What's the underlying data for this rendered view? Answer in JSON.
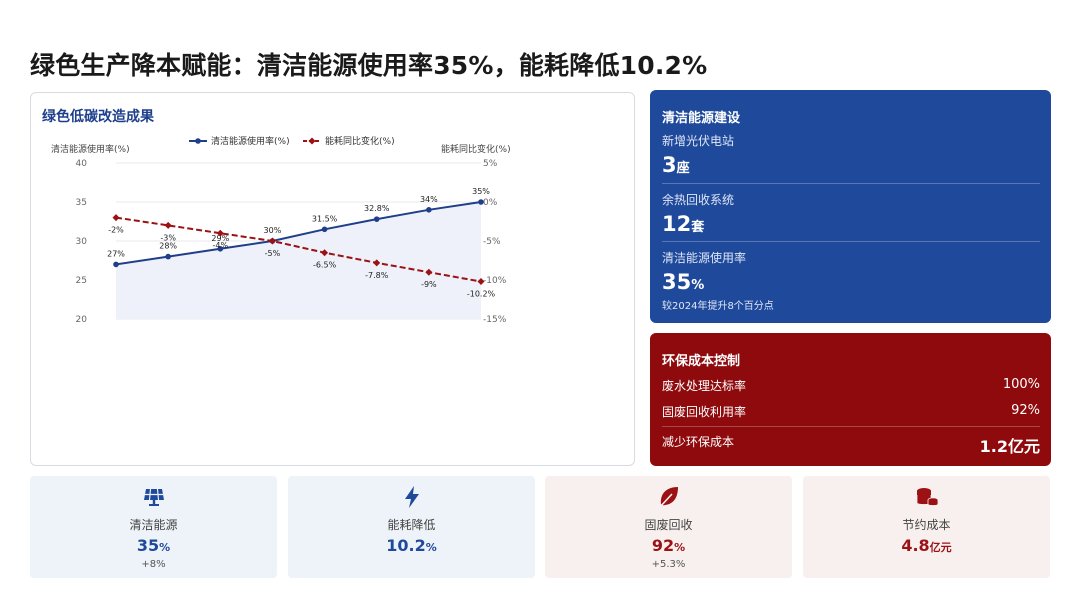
{
  "title": "绿色生产降本赋能：清洁能源使用率35%，能耗降低10.2%",
  "chart_card": {
    "title": "绿色低碳改造成果"
  },
  "chart_data": {
    "type": "line",
    "title": "绿色低碳改造成果",
    "ylabel_left": "清洁能源使用率(%)",
    "ylabel_right": "能耗同比变化(%)",
    "ylim_left": [
      20,
      40
    ],
    "ylim_right": [
      -15,
      5
    ],
    "yticks_left": [
      "40",
      "35",
      "30",
      "25",
      "20"
    ],
    "yticks_right": [
      "5%",
      "0%",
      "-5%",
      "-10%",
      "-15%"
    ],
    "legend_position": "top-center",
    "grid": true,
    "x": [
      0,
      1,
      2,
      3,
      4,
      5,
      6,
      7
    ],
    "xtick_labels": [
      "",
      "",
      "",
      "",
      ""
    ],
    "series": [
      {
        "name": "清洁能源使用率(%)",
        "axis": "left",
        "style": "solid",
        "color": "#1f3f8a",
        "values": [
          27,
          28,
          29,
          30,
          31.5,
          32.8,
          34,
          35
        ],
        "labels": [
          "27%",
          "28%",
          "29%",
          "30%",
          "31.5%",
          "32.8%",
          "34%",
          "35%"
        ]
      },
      {
        "name": "能耗同比变化(%)",
        "axis": "right",
        "style": "dashed",
        "color": "#9b1114",
        "values": [
          -2,
          -3,
          -4,
          -5,
          -6.5,
          -7.8,
          -9,
          -10.2
        ],
        "labels": [
          "-2%",
          "-3%",
          "-4%",
          "-5%",
          "-6.5%",
          "-7.8%",
          "-9%",
          "-10.2%"
        ]
      }
    ]
  },
  "clean_energy": {
    "title": "清洁能源建设",
    "items": [
      {
        "label": "新增光伏电站",
        "value": "3",
        "unit": "座"
      },
      {
        "label": "余热回收系统",
        "value": "12",
        "unit": "套"
      },
      {
        "label": "清洁能源使用率",
        "value": "35",
        "unit": "%",
        "note": "较2024年提升8个百分点"
      }
    ]
  },
  "env_cost": {
    "title": "环保成本控制",
    "rows": [
      {
        "label": "废水处理达标率",
        "value": "100%"
      },
      {
        "label": "固废回收利用率",
        "value": "92%"
      }
    ],
    "total": {
      "label": "减少环保成本",
      "value": "1.2亿元"
    }
  },
  "stats": [
    {
      "label": "清洁能源",
      "value": "35",
      "unit": "%",
      "delta": "+8%",
      "icon": "solar-panel-icon",
      "color": "#1f4a9c"
    },
    {
      "label": "能耗降低",
      "value": "10.2",
      "unit": "%",
      "delta": "",
      "icon": "lightning-icon",
      "color": "#1f4a9c"
    },
    {
      "label": "固废回收",
      "value": "92",
      "unit": "%",
      "delta": "+5.3%",
      "icon": "leaf-icon",
      "color": "#9b1114"
    },
    {
      "label": "节约成本",
      "value": "4.8",
      "unit": "亿元",
      "delta": "",
      "icon": "coins-icon",
      "color": "#9b1114"
    }
  ]
}
